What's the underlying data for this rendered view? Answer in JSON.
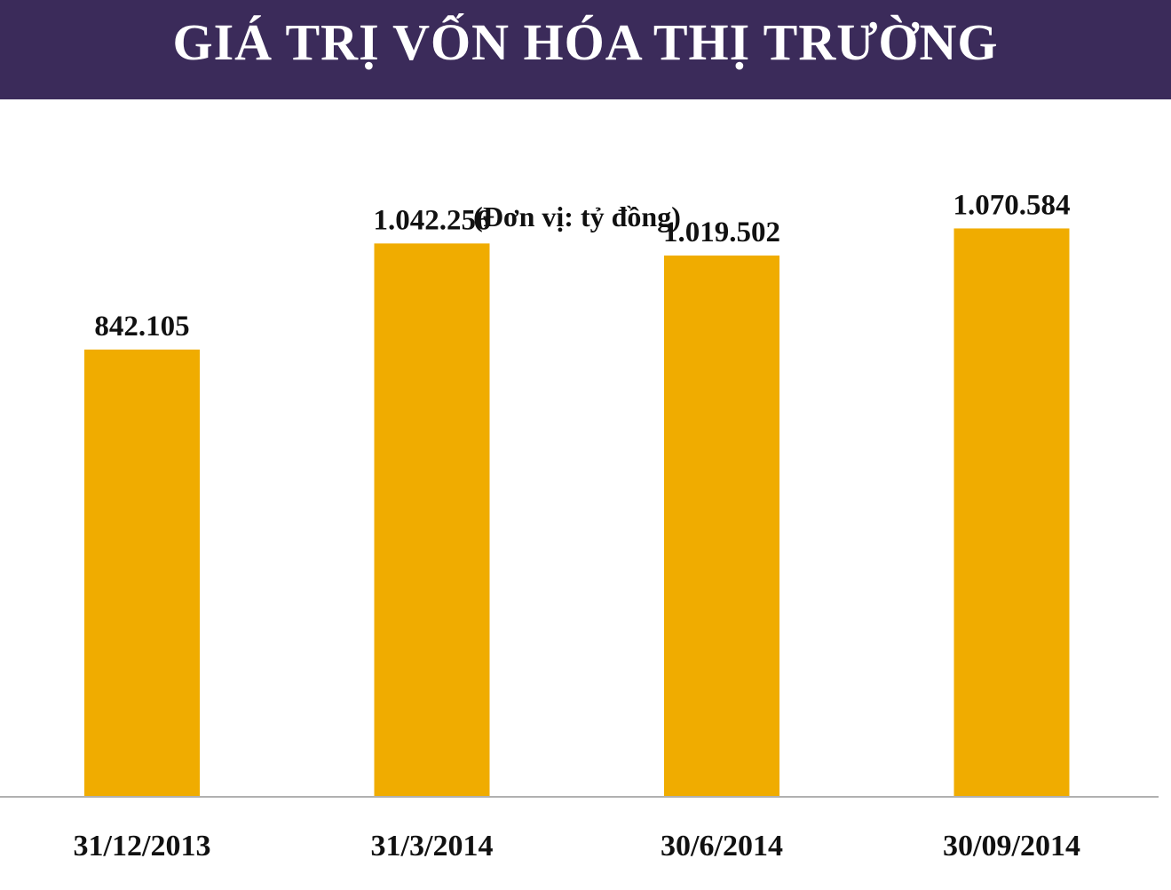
{
  "header": {
    "title": "GIÁ TRỊ VỐN HÓA THỊ TRƯỜNG"
  },
  "chart_data": {
    "type": "bar",
    "title": "GIÁ TRỊ VỐN HÓA THỊ TRƯỜNG",
    "subtitle": "(Đơn vị: tỷ đồng)",
    "categories": [
      "31/12/2013",
      "31/3/2014",
      "30/6/2014",
      "30/09/2014"
    ],
    "values": [
      842105,
      1042256,
      1019502,
      1070584
    ],
    "value_labels": [
      "842.105",
      "1.042.256",
      "1.019.502",
      "1.070.584"
    ],
    "ylim": [
      0,
      1150000
    ],
    "grid": false,
    "legend": "none",
    "colors": {
      "bar": "#f0ac00",
      "header_bg": "#3b2b5a",
      "axis": "#b0b0b0"
    }
  }
}
